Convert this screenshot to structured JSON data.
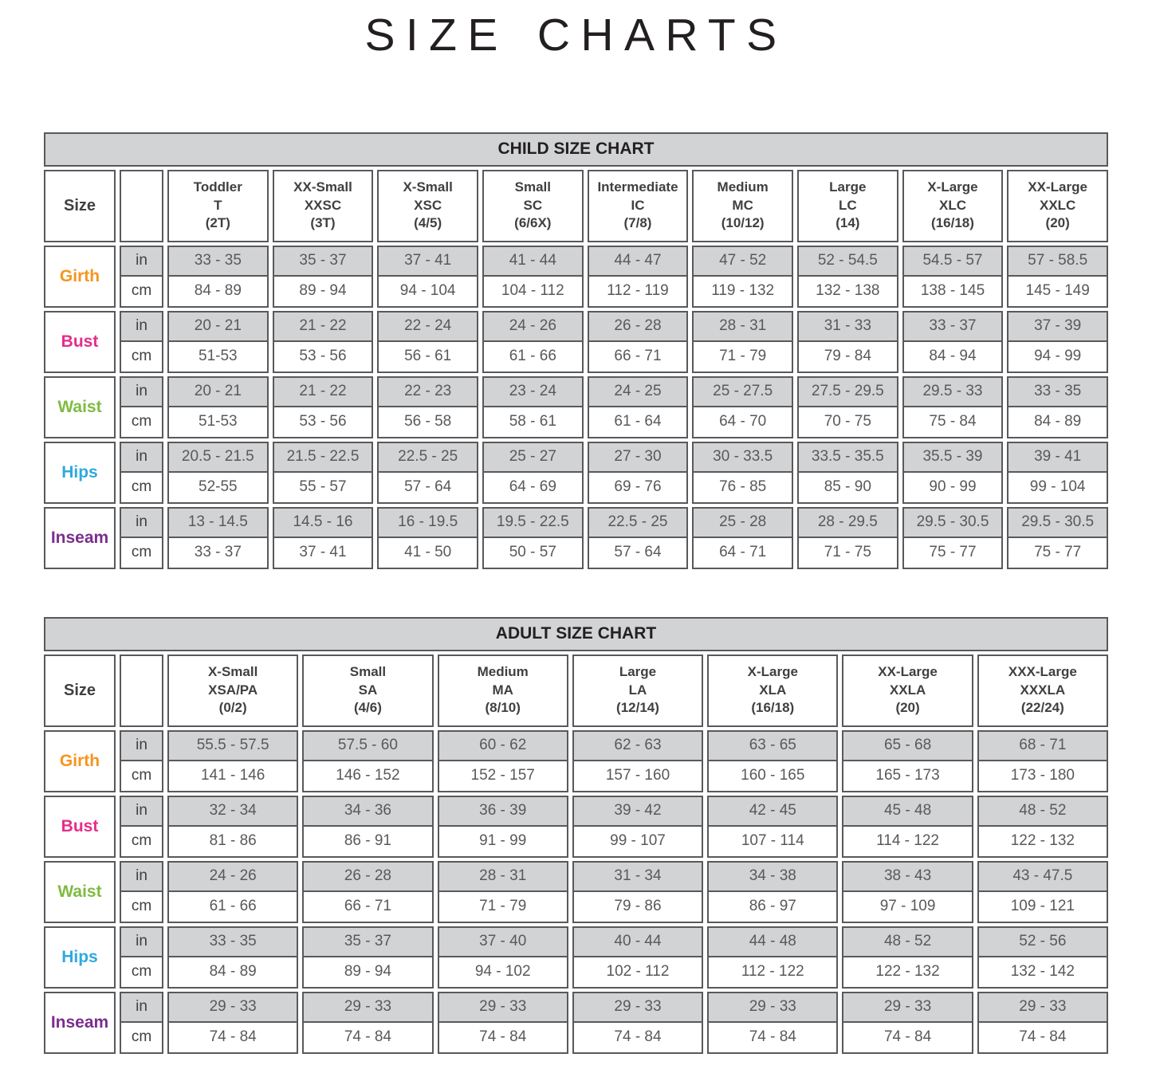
{
  "page_title": "SIZE CHARTS",
  "unit_labels": [
    "in",
    "cm"
  ],
  "colors": {
    "border": "#59595c",
    "shaded_row_bg": "#d1d3d4",
    "band_bg": "#d1d3d4",
    "title_text": "#231f20",
    "value_text": "#58595b",
    "girth_label": "#f7941e",
    "bust_label": "#e52d8a",
    "waist_label": "#7fbb42",
    "hips_label": "#2fa9e0",
    "inseam_label": "#7b2e8e"
  },
  "charts": [
    {
      "title": "CHILD SIZE CHART",
      "corner_label": "Size",
      "columns": [
        {
          "name": "Toddler",
          "code": "T",
          "range": "(2T)"
        },
        {
          "name": "XX-Small",
          "code": "XXSC",
          "range": "(3T)"
        },
        {
          "name": "X-Small",
          "code": "XSC",
          "range": "(4/5)"
        },
        {
          "name": "Small",
          "code": "SC",
          "range": "(6/6X)"
        },
        {
          "name": "Intermediate",
          "code": "IC",
          "range": "(7/8)"
        },
        {
          "name": "Medium",
          "code": "MC",
          "range": "(10/12)"
        },
        {
          "name": "Large",
          "code": "LC",
          "range": "(14)"
        },
        {
          "name": "X-Large",
          "code": "XLC",
          "range": "(16/18)"
        },
        {
          "name": "XX-Large",
          "code": "XXLC",
          "range": "(20)"
        }
      ],
      "rows": [
        {
          "label": "Girth",
          "label_color": "#f7941e",
          "in": [
            "33 - 35",
            "35 - 37",
            "37 - 41",
            "41 - 44",
            "44 - 47",
            "47 - 52",
            "52 - 54.5",
            "54.5 - 57",
            "57 - 58.5"
          ],
          "cm": [
            "84 - 89",
            "89 - 94",
            "94 - 104",
            "104 - 112",
            "112 - 119",
            "119 - 132",
            "132 - 138",
            "138 - 145",
            "145 - 149"
          ]
        },
        {
          "label": "Bust",
          "label_color": "#e52d8a",
          "in": [
            "20 - 21",
            "21 - 22",
            "22 - 24",
            "24 - 26",
            "26 - 28",
            "28 - 31",
            "31 - 33",
            "33 - 37",
            "37 - 39"
          ],
          "cm": [
            "51-53",
            "53 - 56",
            "56 - 61",
            "61 - 66",
            "66 - 71",
            "71 - 79",
            "79 - 84",
            "84 - 94",
            "94 - 99"
          ]
        },
        {
          "label": "Waist",
          "label_color": "#7fbb42",
          "in": [
            "20 - 21",
            "21 - 22",
            "22 - 23",
            "23 - 24",
            "24 - 25",
            "25 - 27.5",
            "27.5 - 29.5",
            "29.5 - 33",
            "33 - 35"
          ],
          "cm": [
            "51-53",
            "53 - 56",
            "56 - 58",
            "58 - 61",
            "61 - 64",
            "64 - 70",
            "70 - 75",
            "75 - 84",
            "84 - 89"
          ]
        },
        {
          "label": "Hips",
          "label_color": "#2fa9e0",
          "in": [
            "20.5 - 21.5",
            "21.5 - 22.5",
            "22.5 - 25",
            "25 - 27",
            "27 - 30",
            "30 - 33.5",
            "33.5 - 35.5",
            "35.5 - 39",
            "39 - 41"
          ],
          "cm": [
            "52-55",
            "55 - 57",
            "57 - 64",
            "64 - 69",
            "69 - 76",
            "76 - 85",
            "85 - 90",
            "90 - 99",
            "99 - 104"
          ]
        },
        {
          "label": "Inseam",
          "label_color": "#7b2e8e",
          "in": [
            "13 - 14.5",
            "14.5 - 16",
            "16 - 19.5",
            "19.5 - 22.5",
            "22.5 - 25",
            "25 - 28",
            "28 - 29.5",
            "29.5 - 30.5",
            "29.5 - 30.5"
          ],
          "cm": [
            "33 - 37",
            "37 - 41",
            "41 - 50",
            "50 - 57",
            "57 - 64",
            "64 - 71",
            "71 - 75",
            "75 - 77",
            "75 - 77"
          ]
        }
      ]
    },
    {
      "title": "ADULT SIZE CHART",
      "corner_label": "Size",
      "columns": [
        {
          "name": "X-Small",
          "code": "XSA/PA",
          "range": "(0/2)"
        },
        {
          "name": "Small",
          "code": "SA",
          "range": "(4/6)"
        },
        {
          "name": "Medium",
          "code": "MA",
          "range": "(8/10)"
        },
        {
          "name": "Large",
          "code": "LA",
          "range": "(12/14)"
        },
        {
          "name": "X-Large",
          "code": "XLA",
          "range": "(16/18)"
        },
        {
          "name": "XX-Large",
          "code": "XXLA",
          "range": "(20)"
        },
        {
          "name": "XXX-Large",
          "code": "XXXLA",
          "range": "(22/24)"
        }
      ],
      "rows": [
        {
          "label": "Girth",
          "label_color": "#f7941e",
          "in": [
            "55.5 - 57.5",
            "57.5 - 60",
            "60 - 62",
            "62 - 63",
            "63 - 65",
            "65 - 68",
            "68 - 71"
          ],
          "cm": [
            "141 - 146",
            "146 - 152",
            "152 - 157",
            "157 - 160",
            "160 - 165",
            "165 - 173",
            "173 - 180"
          ]
        },
        {
          "label": "Bust",
          "label_color": "#e52d8a",
          "in": [
            "32 - 34",
            "34 - 36",
            "36 - 39",
            "39 - 42",
            "42 - 45",
            "45 - 48",
            "48 - 52"
          ],
          "cm": [
            "81 - 86",
            "86 - 91",
            "91 - 99",
            "99 - 107",
            "107 - 114",
            "114 - 122",
            "122 - 132"
          ]
        },
        {
          "label": "Waist",
          "label_color": "#7fbb42",
          "in": [
            "24 - 26",
            "26 - 28",
            "28 - 31",
            "31 - 34",
            "34 - 38",
            "38 - 43",
            "43 - 47.5"
          ],
          "cm": [
            "61 - 66",
            "66 - 71",
            "71 - 79",
            "79 - 86",
            "86 - 97",
            "97 - 109",
            "109 - 121"
          ]
        },
        {
          "label": "Hips",
          "label_color": "#2fa9e0",
          "in": [
            "33 - 35",
            "35 - 37",
            "37 - 40",
            "40 - 44",
            "44 - 48",
            "48 - 52",
            "52 - 56"
          ],
          "cm": [
            "84 - 89",
            "89 - 94",
            "94 - 102",
            "102 - 112",
            "112 - 122",
            "122 - 132",
            "132 - 142"
          ]
        },
        {
          "label": "Inseam",
          "label_color": "#7b2e8e",
          "in": [
            "29 - 33",
            "29 - 33",
            "29 - 33",
            "29 - 33",
            "29 - 33",
            "29 - 33",
            "29 - 33"
          ],
          "cm": [
            "74 - 84",
            "74 - 84",
            "74 - 84",
            "74 - 84",
            "74 - 84",
            "74 - 84",
            "74 - 84"
          ]
        }
      ]
    }
  ]
}
